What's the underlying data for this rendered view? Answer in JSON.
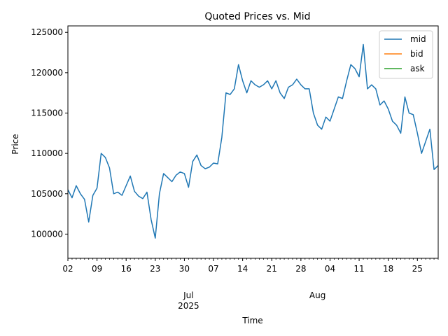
{
  "chart_data": {
    "type": "line",
    "title": "Quoted Prices vs. Mid",
    "xlabel": "Time",
    "ylabel": "Price",
    "ylim": [
      97000,
      125800
    ],
    "xlim": [
      "2025-06-02",
      "2025-08-30"
    ],
    "y_ticks": [
      100000,
      105000,
      110000,
      115000,
      120000,
      125000
    ],
    "y_tick_labels": [
      "100000",
      "105000",
      "110000",
      "115000",
      "120000",
      "125000"
    ],
    "x_major_ticks": [
      {
        "date": "2025-06-02",
        "label": "02"
      },
      {
        "date": "2025-06-09",
        "label": "09"
      },
      {
        "date": "2025-06-16",
        "label": "16"
      },
      {
        "date": "2025-06-23",
        "label": "23"
      },
      {
        "date": "2025-06-30",
        "label": "30"
      },
      {
        "date": "2025-07-07",
        "label": "07"
      },
      {
        "date": "2025-07-14",
        "label": "14"
      },
      {
        "date": "2025-07-21",
        "label": "21"
      },
      {
        "date": "2025-07-28",
        "label": "28"
      },
      {
        "date": "2025-08-04",
        "label": "04"
      },
      {
        "date": "2025-08-11",
        "label": "11"
      },
      {
        "date": "2025-08-18",
        "label": "18"
      },
      {
        "date": "2025-08-25",
        "label": "25"
      }
    ],
    "x_month_labels": [
      {
        "date": "2025-07-01",
        "label": "Jul",
        "sublabel": "2025"
      },
      {
        "date": "2025-08-01",
        "label": "Aug",
        "sublabel": ""
      }
    ],
    "legend_position": "top-right",
    "series": [
      {
        "name": "mid",
        "color": "#1f77b4",
        "x": [
          "2025-06-02",
          "2025-06-03",
          "2025-06-04",
          "2025-06-05",
          "2025-06-06",
          "2025-06-07",
          "2025-06-08",
          "2025-06-09",
          "2025-06-10",
          "2025-06-11",
          "2025-06-12",
          "2025-06-13",
          "2025-06-14",
          "2025-06-15",
          "2025-06-16",
          "2025-06-17",
          "2025-06-18",
          "2025-06-19",
          "2025-06-20",
          "2025-06-21",
          "2025-06-22",
          "2025-06-23",
          "2025-06-24",
          "2025-06-25",
          "2025-06-26",
          "2025-06-27",
          "2025-06-28",
          "2025-06-29",
          "2025-06-30",
          "2025-07-01",
          "2025-07-02",
          "2025-07-03",
          "2025-07-04",
          "2025-07-05",
          "2025-07-06",
          "2025-07-07",
          "2025-07-08",
          "2025-07-09",
          "2025-07-10",
          "2025-07-11",
          "2025-07-12",
          "2025-07-13",
          "2025-07-14",
          "2025-07-15",
          "2025-07-16",
          "2025-07-17",
          "2025-07-18",
          "2025-07-19",
          "2025-07-20",
          "2025-07-21",
          "2025-07-22",
          "2025-07-23",
          "2025-07-24",
          "2025-07-25",
          "2025-07-26",
          "2025-07-27",
          "2025-07-28",
          "2025-07-29",
          "2025-07-30",
          "2025-07-31",
          "2025-08-01",
          "2025-08-02",
          "2025-08-03",
          "2025-08-04",
          "2025-08-05",
          "2025-08-06",
          "2025-08-07",
          "2025-08-08",
          "2025-08-09",
          "2025-08-10",
          "2025-08-11",
          "2025-08-12",
          "2025-08-13",
          "2025-08-14",
          "2025-08-15",
          "2025-08-16",
          "2025-08-17",
          "2025-08-18",
          "2025-08-19",
          "2025-08-20",
          "2025-08-21",
          "2025-08-22",
          "2025-08-23",
          "2025-08-24",
          "2025-08-25",
          "2025-08-26",
          "2025-08-27",
          "2025-08-28",
          "2025-08-29",
          "2025-08-30"
        ],
        "y": [
          105500,
          104500,
          106000,
          105000,
          104300,
          101500,
          104800,
          105700,
          110000,
          109500,
          108200,
          105000,
          105200,
          104800,
          106000,
          107200,
          105300,
          104700,
          104400,
          105200,
          101800,
          99500,
          105000,
          107500,
          107000,
          106500,
          107300,
          107700,
          107500,
          105800,
          109000,
          109800,
          108500,
          108100,
          108300,
          108800,
          108700,
          112000,
          117500,
          117300,
          118000,
          121000,
          119000,
          117500,
          119000,
          118500,
          118200,
          118500,
          119000,
          118000,
          119000,
          117500,
          116800,
          118200,
          118500,
          119200,
          118500,
          118000,
          118000,
          115000,
          113500,
          113000,
          114500,
          114000,
          115500,
          117000,
          116800,
          119000,
          121000,
          120500,
          119500,
          123500,
          118000,
          118500,
          118000,
          116000,
          116500,
          115500,
          114000,
          113500,
          112500,
          117000,
          115000,
          114800,
          112500,
          110000,
          111500,
          113000,
          108000,
          108500
        ]
      },
      {
        "name": "bid",
        "color": "#ff7f0e",
        "x": [],
        "y": []
      },
      {
        "name": "ask",
        "color": "#2ca02c",
        "x": [],
        "y": []
      }
    ]
  }
}
